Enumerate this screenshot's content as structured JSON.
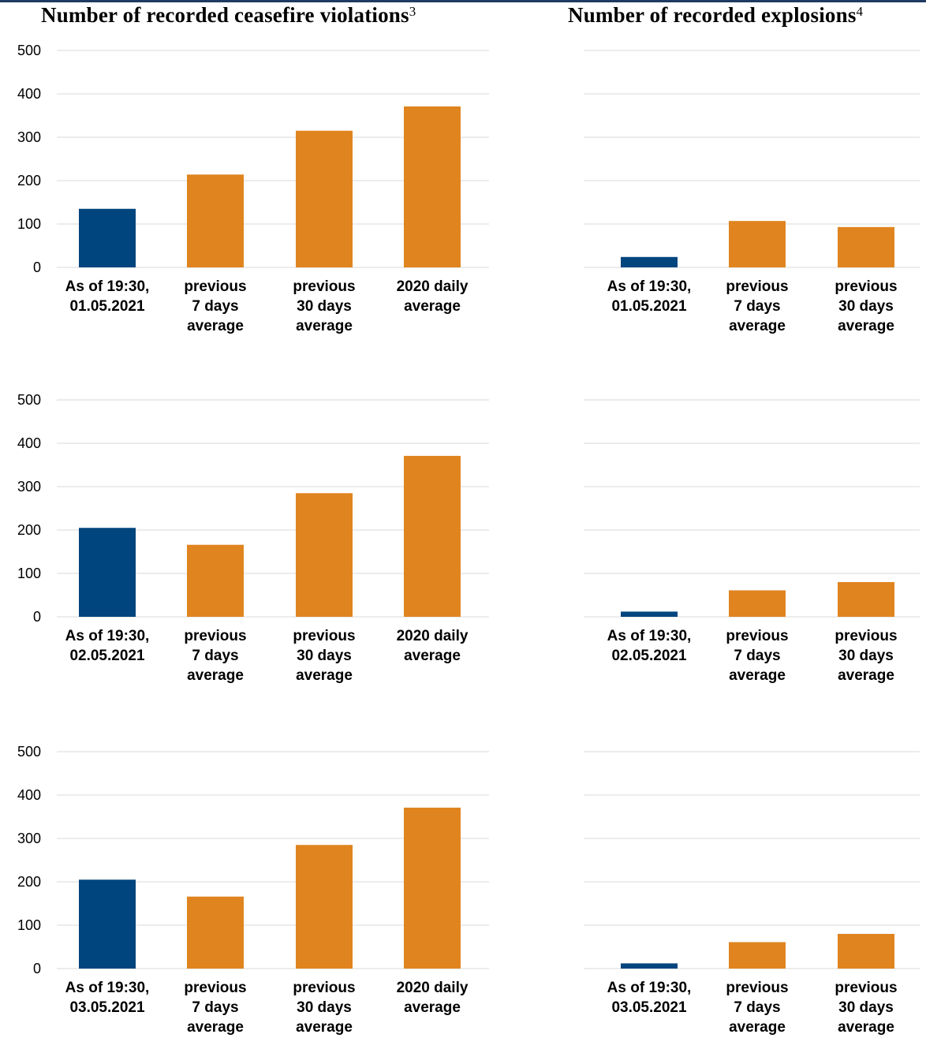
{
  "titles": {
    "left": "Number of recorded ceasefire violations",
    "left_note": "3",
    "right": "Number of recorded explosions",
    "right_note": "4"
  },
  "colors": {
    "current": "#00457e",
    "average": "#e0841f",
    "grid": "#d9d9d9"
  },
  "chart_data": [
    {
      "type": "bar",
      "title": "Number of recorded ceasefire violations",
      "ylim": [
        0,
        500
      ],
      "yticks": [
        0,
        100,
        200,
        300,
        400,
        500
      ],
      "grid": true,
      "categories": [
        [
          "As of 19:30,",
          "01.05.2021"
        ],
        [
          "previous",
          "7 days",
          "average"
        ],
        [
          "previous",
          "30 days",
          "average"
        ],
        [
          "2020 daily",
          "average"
        ]
      ],
      "values": [
        135,
        214,
        315,
        371
      ]
    },
    {
      "type": "bar",
      "title": "Number of recorded explosions",
      "ylim": [
        0,
        500
      ],
      "yticks": [
        0,
        100,
        200,
        300,
        400,
        500
      ],
      "grid": true,
      "categories": [
        [
          "As of 19:30,",
          "01.05.2021"
        ],
        [
          "previous",
          "7 days",
          "average"
        ],
        [
          "previous",
          "30 days",
          "average"
        ]
      ],
      "values": [
        24,
        107,
        93
      ]
    },
    {
      "type": "bar",
      "title": "Number of recorded ceasefire violations",
      "ylim": [
        0,
        500
      ],
      "yticks": [
        0,
        100,
        200,
        300,
        400,
        500
      ],
      "grid": true,
      "categories": [
        [
          "As of 19:30,",
          "02.05.2021"
        ],
        [
          "previous",
          "7 days",
          "average"
        ],
        [
          "previous",
          "30 days",
          "average"
        ],
        [
          "2020 daily",
          "average"
        ]
      ],
      "values": [
        205,
        166,
        285,
        371
      ]
    },
    {
      "type": "bar",
      "title": "Number of recorded explosions",
      "ylim": [
        0,
        500
      ],
      "yticks": [
        0,
        100,
        200,
        300,
        400,
        500
      ],
      "grid": true,
      "categories": [
        [
          "As of 19:30,",
          "02.05.2021"
        ],
        [
          "previous",
          "7 days",
          "average"
        ],
        [
          "previous",
          "30 days",
          "average"
        ]
      ],
      "values": [
        12,
        61,
        80
      ]
    },
    {
      "type": "bar",
      "title": "Number of recorded ceasefire violations",
      "ylim": [
        0,
        500
      ],
      "yticks": [
        0,
        100,
        200,
        300,
        400,
        500
      ],
      "grid": true,
      "categories": [
        [
          "As of 19:30,",
          "03.05.2021"
        ],
        [
          "previous",
          "7 days",
          "average"
        ],
        [
          "previous",
          "30 days",
          "average"
        ],
        [
          "2020 daily",
          "average"
        ]
      ],
      "values": [
        205,
        166,
        285,
        371
      ]
    },
    {
      "type": "bar",
      "title": "Number of recorded explosions",
      "ylim": [
        0,
        500
      ],
      "yticks": [
        0,
        100,
        200,
        300,
        400,
        500
      ],
      "grid": true,
      "categories": [
        [
          "As of 19:30,",
          "03.05.2021"
        ],
        [
          "previous",
          "7 days",
          "average"
        ],
        [
          "previous",
          "30 days",
          "average"
        ]
      ],
      "values": [
        12,
        61,
        80
      ]
    }
  ]
}
